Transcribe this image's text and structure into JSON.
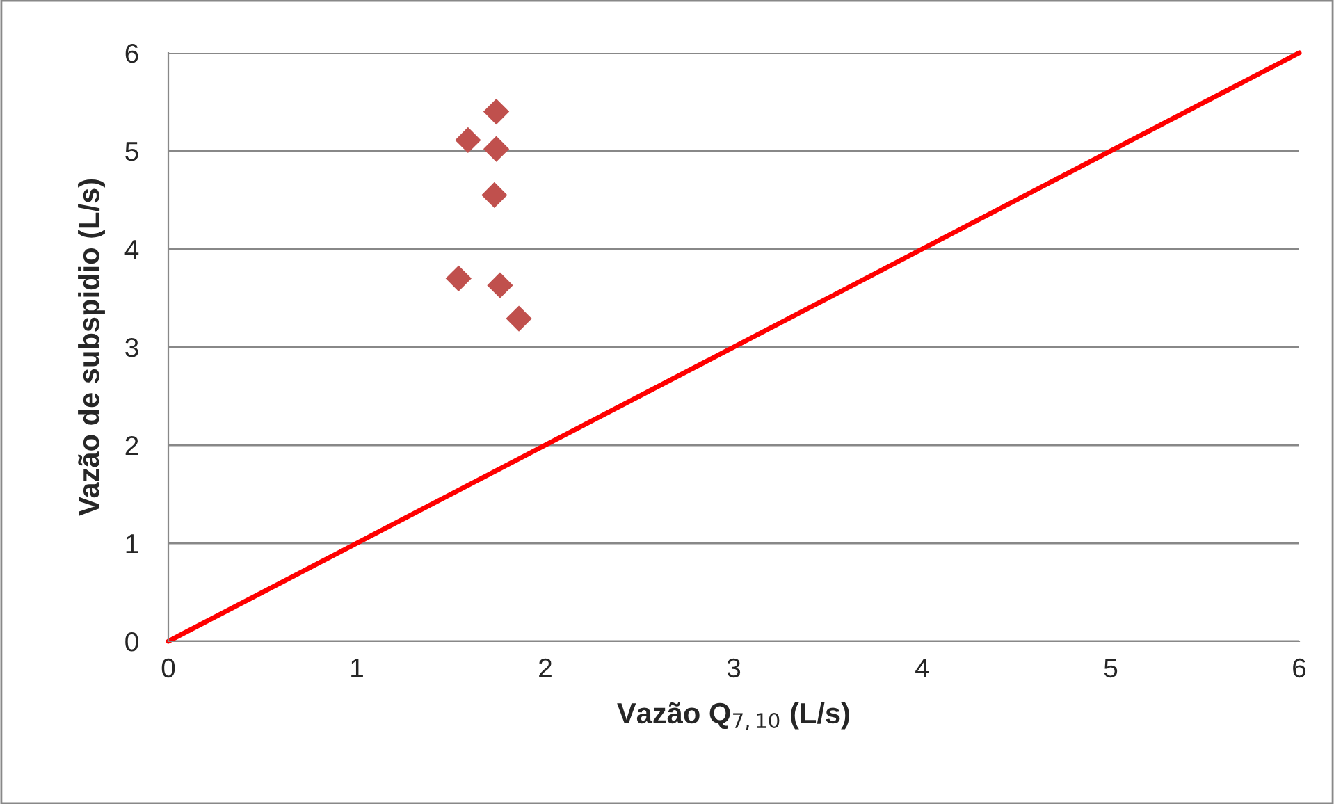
{
  "chart_data": {
    "type": "scatter",
    "xlabel": "Vazão Q$_{7,10}$ (L/s)",
    "ylabel": "Vazão de subspidio (L/s)",
    "series": [
      {
        "color": "#c0504d",
        "marker": "diamond",
        "x": [
          1.74,
          1.59,
          1.74,
          1.73,
          1.54,
          1.76,
          1.86
        ],
        "values": [
          5.4,
          5.11,
          5.02,
          4.55,
          3.7,
          3.63,
          3.29
        ]
      },
      {
        "type": "line",
        "color": "#ff0000",
        "marker": "none",
        "line_style": "solid",
        "x": [
          0,
          6
        ],
        "values": [
          0,
          6
        ]
      }
    ],
    "xlim": [
      0,
      6
    ],
    "ylim": [
      0,
      6
    ],
    "xticks": [
      0,
      1,
      2,
      3,
      4,
      5,
      6
    ],
    "yticks": [
      0,
      1,
      2,
      3,
      4,
      5,
      6
    ],
    "grid": "y",
    "legend": false
  }
}
